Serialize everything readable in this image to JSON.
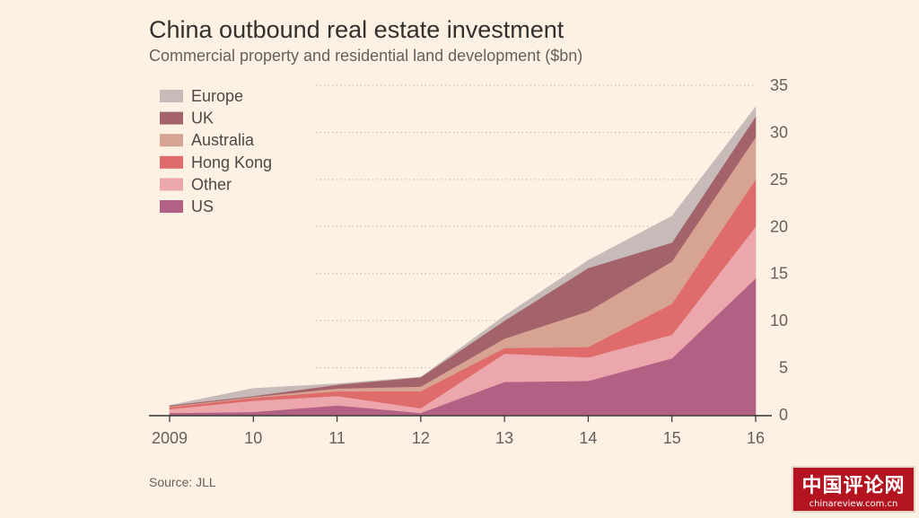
{
  "chart_data": {
    "type": "area",
    "stacked": true,
    "title": "China outbound real estate investment",
    "subtitle": "Commercial property and residential land development ($bn)",
    "source": "Source: JLL",
    "x": [
      "2009",
      "10",
      "11",
      "12",
      "13",
      "14",
      "15",
      "16"
    ],
    "ylim": [
      0,
      35
    ],
    "yticks": [
      "35",
      "30",
      "25",
      "20",
      "15",
      "10",
      "5",
      "0"
    ],
    "ytick_values": [
      35,
      30,
      25,
      20,
      15,
      10,
      5,
      0
    ],
    "grid": true,
    "legend_position": "top-left",
    "series": [
      {
        "name": "US",
        "color": "#b26083",
        "values": [
          0.2,
          0.3,
          1.0,
          0.2,
          3.5,
          3.6,
          6.0,
          14.5
        ]
      },
      {
        "name": "Other",
        "color": "#eca7ac",
        "values": [
          0.4,
          1.2,
          1.0,
          0.5,
          3.0,
          2.5,
          2.5,
          5.5
        ]
      },
      {
        "name": "Hong Kong",
        "color": "#df6b6b",
        "values": [
          0.2,
          0.3,
          0.5,
          1.8,
          0.6,
          1.1,
          3.3,
          5.0
        ]
      },
      {
        "name": "Australia",
        "color": "#d7a392",
        "values": [
          0.1,
          0.1,
          0.3,
          0.5,
          1.0,
          3.8,
          4.5,
          4.5
        ]
      },
      {
        "name": "UK",
        "color": "#a4636b",
        "values": [
          0.1,
          0.1,
          0.4,
          1.0,
          1.9,
          4.6,
          2.0,
          2.2
        ]
      },
      {
        "name": "Europe",
        "color": "#c6bbb9",
        "values": [
          0.0,
          0.8,
          0.1,
          0.0,
          0.5,
          0.8,
          2.8,
          1.0
        ]
      }
    ],
    "legend_order": [
      "Europe",
      "UK",
      "Australia",
      "Hong Kong",
      "Other",
      "US"
    ]
  },
  "watermark": {
    "main": "中国评论网",
    "url": "chinareview.com.cn"
  }
}
